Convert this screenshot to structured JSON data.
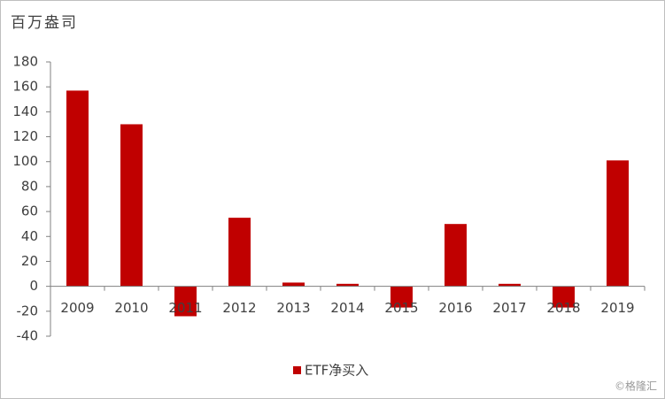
{
  "chart_data": {
    "type": "bar",
    "y_axis_label": "百万盎司",
    "categories": [
      "2009",
      "2010",
      "2011",
      "2012",
      "2013",
      "2014",
      "2015",
      "2016",
      "2017",
      "2018",
      "2019"
    ],
    "series": [
      {
        "name": "ETF净买入",
        "color": "#c00000",
        "values": [
          157,
          130,
          -24,
          55,
          3,
          2,
          -17,
          50,
          2,
          -17,
          101
        ]
      }
    ],
    "ylim": [
      -40,
      180
    ],
    "yticks": [
      -40,
      -20,
      0,
      20,
      40,
      60,
      80,
      100,
      120,
      140,
      160,
      180
    ],
    "legend": "bottom",
    "watermark": "©格隆汇"
  }
}
